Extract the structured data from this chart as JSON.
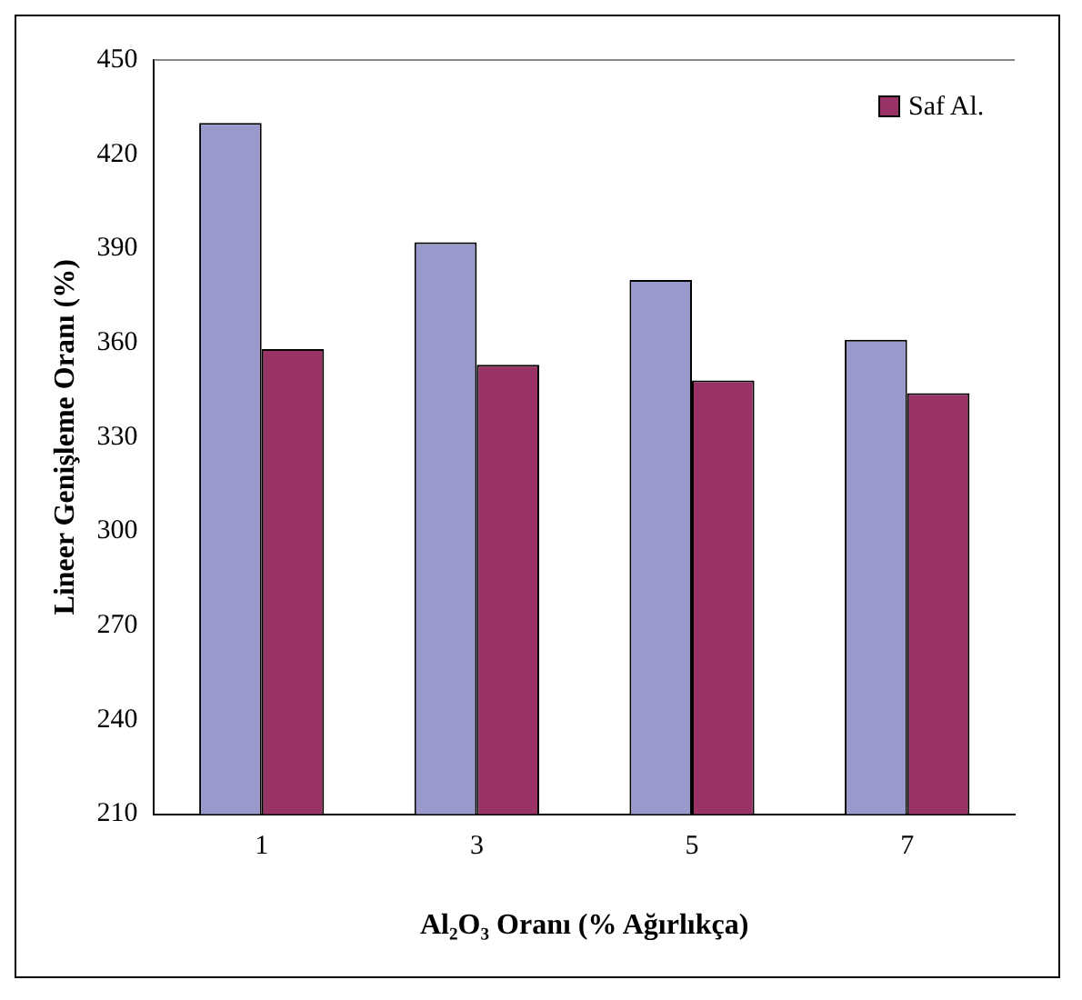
{
  "chart_data": {
    "type": "bar",
    "xlabel": "Al₂O₃ Oranı (% Ağırlıkça)",
    "ylabel": "Lineer Genişleme Oranı (%)",
    "categories": [
      "1",
      "3",
      "5",
      "7"
    ],
    "series": [
      {
        "color": "#9999cc",
        "values": [
          430,
          392,
          380,
          361
        ]
      },
      {
        "name": "Saf Al.",
        "color": "#993366",
        "values": [
          358,
          353,
          348,
          344
        ]
      }
    ],
    "ylim": [
      210,
      450
    ],
    "yticks": [
      210,
      240,
      270,
      300,
      330,
      360,
      390,
      420,
      450
    ],
    "grid": false,
    "legend": "top right"
  }
}
